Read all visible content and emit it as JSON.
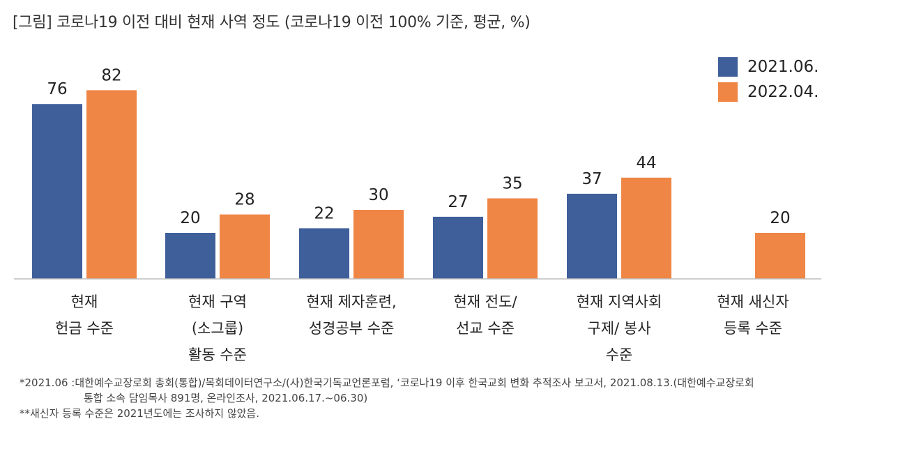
{
  "title": "[그림] 코로나19 이전 대비 현재 사역 정도 (코로나19 이전 100% 기준, 평균, %)",
  "colors": {
    "series1": "#3f5f9b",
    "series2": "#ef8646",
    "axis": "#bdbdbd"
  },
  "chart_data": {
    "type": "bar",
    "categories": [
      [
        "현재",
        "헌금 수준"
      ],
      [
        "현재 구역",
        "(소그룹)",
        "활동 수준"
      ],
      [
        "현재 제자훈련,",
        "성경공부 수준"
      ],
      [
        "현재 전도/",
        "선교 수준"
      ],
      [
        "현재 지역사회",
        "구제/ 봉사",
        "수준"
      ],
      [
        "현재 새신자",
        "등록 수준"
      ]
    ],
    "series": [
      {
        "name": "2021.06.",
        "values": [
          76,
          20,
          22,
          27,
          37,
          null
        ]
      },
      {
        "name": "2022.04.",
        "values": [
          82,
          28,
          30,
          35,
          44,
          20
        ]
      }
    ],
    "legend_position": "top-right",
    "grid": false,
    "ylim": [
      0,
      90
    ]
  },
  "notes": [
    {
      "key": "*2021.06 : ",
      "text": "대한예수교장로회 총회(통합)/목회데이터연구소/(사)한국기독교언론포럼, ‘코로나19 이후 한국교회 변화 추적조사 보고서, 2021.08.13.(대한예수교장로회"
    },
    {
      "key": "",
      "text": "통합 소속 담임목사 891명, 온라인조사, 2021.06.17.~06.30)"
    },
    {
      "key": "",
      "text": "**새신자 등록 수준은 2021년도에는 조사하지 않았음."
    }
  ]
}
